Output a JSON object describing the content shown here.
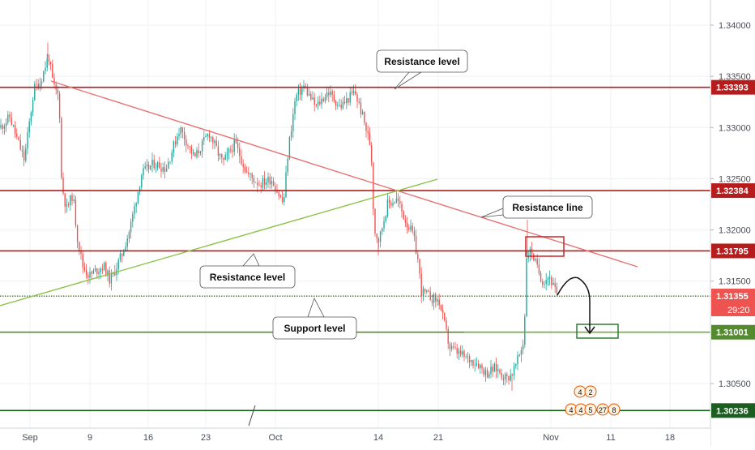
{
  "chart_data": {
    "type": "candlestick",
    "instrument_note": "",
    "y_axis": {
      "ylim": [
        1.2995,
        1.3436
      ],
      "ticks": [
        "1.34000",
        "1.33500",
        "1.33000",
        "1.32500",
        "1.32000",
        "1.31500",
        "1.30500"
      ],
      "tick_values": [
        1.34,
        1.335,
        1.33,
        1.325,
        1.32,
        1.315,
        1.305
      ]
    },
    "x_axis": {
      "labels": [
        "Sep",
        "9",
        "16",
        "23",
        "Oct",
        "14",
        "21",
        "Nov",
        "11",
        "18"
      ]
    },
    "price_levels": [
      {
        "label": "1.33393",
        "value": 1.33393,
        "color": "#b71c1c",
        "style": "solid"
      },
      {
        "label": "1.32384",
        "value": 1.32384,
        "color": "#b71c1c",
        "style": "solid"
      },
      {
        "label": "1.31795",
        "value": 1.31795,
        "color": "#b71c1c",
        "style": "solid"
      },
      {
        "label": "1.31353",
        "value": 1.31353,
        "color": "#558b2f",
        "style": "dotted"
      },
      {
        "label": "1.31001",
        "value": 1.31001,
        "color": "#558b2f",
        "style": "solid"
      },
      {
        "label": "1.30236",
        "value": 1.30236,
        "color": "#1b5e20",
        "style": "solid"
      }
    ],
    "current_price": {
      "label": "1.31355",
      "value": 1.31355,
      "color": "#ef5350",
      "countdown": "29:20"
    },
    "callouts": [
      {
        "text": "Resistance level"
      },
      {
        "text": "Resistance line"
      },
      {
        "text": "Resistance level"
      },
      {
        "text": "Support level"
      }
    ],
    "event_badges": [
      "4",
      "2",
      "4",
      "4",
      "5",
      "27",
      "8"
    ],
    "grid": true,
    "colors": {
      "up": "#26a69a",
      "down": "#ef5350",
      "resistance": "#c62828",
      "support": "#7cb342",
      "trendline_down": "#e57373",
      "trendline_up": "#8bc34a"
    }
  }
}
